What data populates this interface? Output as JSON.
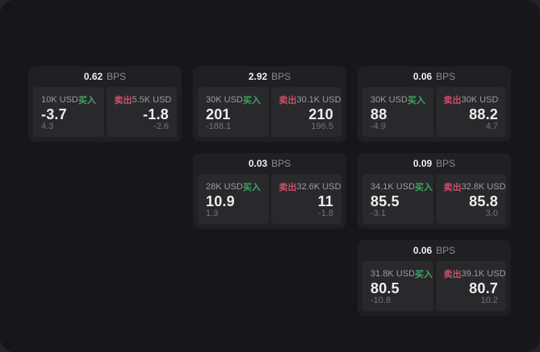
{
  "labels": {
    "bps_unit": "BPS",
    "buy": "买入",
    "sell": "卖出"
  },
  "colors": {
    "buy": "#42a45f",
    "sell": "#cf4d68",
    "window_background": "#17171a",
    "card_background": "#202023",
    "panel_background": "#29292c",
    "primary_text": "#ededef",
    "secondary_text": "#9c9ca1",
    "muted_text": "#737378"
  },
  "cards": [
    {
      "bps": "0.62",
      "buy": {
        "notional": "10K USD",
        "price": "-3.7",
        "delta": "4.3"
      },
      "sell": {
        "notional": "5.5K USD",
        "price": "-1.8",
        "delta": "-2.6"
      }
    },
    {
      "bps": "2.92",
      "buy": {
        "notional": "30K USD",
        "price": "201",
        "delta": "-188.1"
      },
      "sell": {
        "notional": "30.1K USD",
        "price": "210",
        "delta": "196.5"
      }
    },
    {
      "bps": "0.06",
      "buy": {
        "notional": "30K USD",
        "price": "88",
        "delta": "-4.9"
      },
      "sell": {
        "notional": "30K USD",
        "price": "88.2",
        "delta": "4.7"
      }
    },
    {
      "bps": "0.03",
      "buy": {
        "notional": "28K USD",
        "price": "10.9",
        "delta": "1.3"
      },
      "sell": {
        "notional": "32.6K USD",
        "price": "11",
        "delta": "-1.8"
      }
    },
    {
      "bps": "0.09",
      "buy": {
        "notional": "34.1K USD",
        "price": "85.5",
        "delta": "-3.1"
      },
      "sell": {
        "notional": "32.8K USD",
        "price": "85.8",
        "delta": "3.0"
      }
    },
    {
      "bps": "0.06",
      "buy": {
        "notional": "31.8K USD",
        "price": "80.5",
        "delta": "-10.8"
      },
      "sell": {
        "notional": "39.1K USD",
        "price": "80.7",
        "delta": "10.2"
      }
    }
  ]
}
